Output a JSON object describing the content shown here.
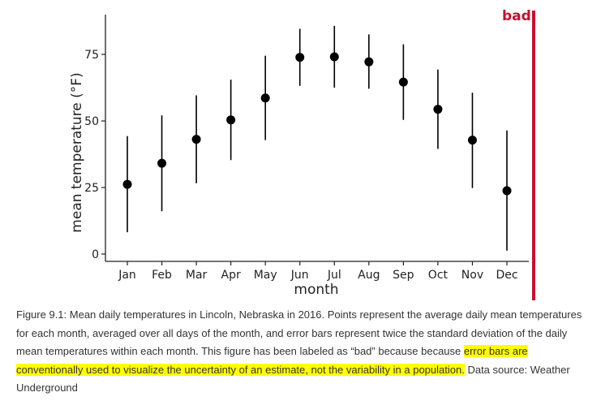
{
  "chart_data": {
    "type": "scatter",
    "subtype": "point-with-error-bars",
    "categories": [
      "Jan",
      "Feb",
      "Mar",
      "Apr",
      "May",
      "Jun",
      "Jul",
      "Aug",
      "Sep",
      "Oct",
      "Nov",
      "Dec"
    ],
    "values": [
      26.2,
      34.1,
      43.1,
      50.4,
      58.6,
      73.9,
      74.1,
      72.2,
      64.6,
      54.4,
      42.8,
      23.8
    ],
    "error_low": [
      8.2,
      16.1,
      26.6,
      35.3,
      42.8,
      63.2,
      62.5,
      62.1,
      50.4,
      39.5,
      24.8,
      1.3
    ],
    "error_high": [
      44.3,
      52.1,
      59.6,
      65.5,
      74.5,
      84.6,
      85.7,
      82.5,
      78.8,
      69.3,
      60.6,
      46.4
    ],
    "yticks": [
      0,
      25,
      50,
      75
    ],
    "xlabel": "month",
    "ylabel": "mean temperature (°F)",
    "ylim": [
      0,
      90
    ],
    "grid": false,
    "marker_color": "#000000"
  },
  "stamp": {
    "label": "bad",
    "color": "#c8102e"
  },
  "caption": {
    "part1": "Figure 9.1: Mean daily temperatures in Lincoln, Nebraska in 2016. Points represent the average daily mean temperatures for each month, averaged over all days of the month, and error bars represent twice the standard deviation of the daily mean temperatures within each month. This figure has been labeled as “bad” because because ",
    "highlight": "error bars are conventionally used to visualize the uncertainty of an estimate, not the variability in a population.",
    "part2": " Data source: Weather Underground",
    "highlight_color": "#ffff00"
  }
}
